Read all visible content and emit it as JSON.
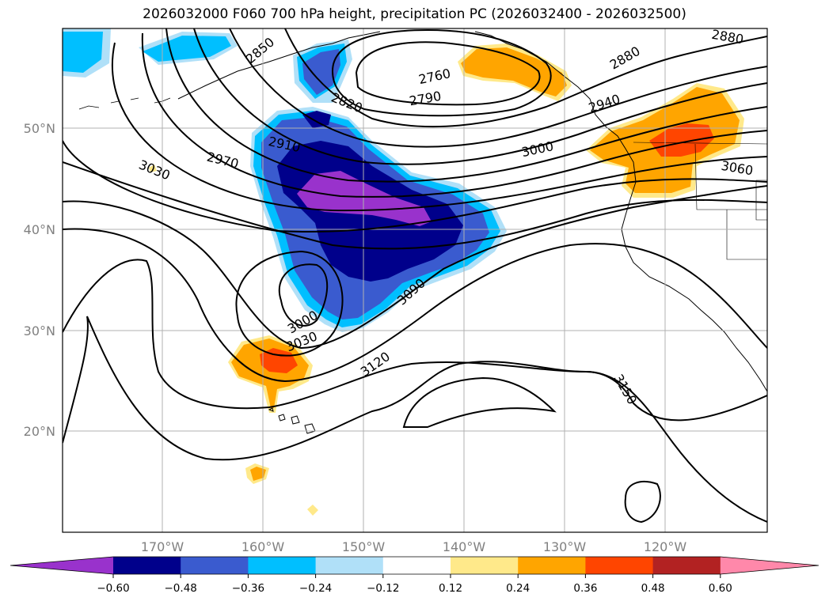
{
  "title": "2026032000 F060 700 hPa height, precipitation PC (2026032400 - 2026032500)",
  "lat_labels": [
    "50°N",
    "40°N",
    "30°N",
    "20°N"
  ],
  "lon_labels": [
    "170°W",
    "160°W",
    "150°W",
    "140°W",
    "130°W",
    "120°W"
  ],
  "contour_labels": [
    "2850",
    "2760",
    "2790",
    "2820",
    "2880",
    "2880",
    "2940",
    "2910",
    "2970",
    "3000",
    "3030",
    "3060",
    "3000",
    "3030",
    "3090",
    "3120",
    "3150"
  ],
  "colorbar": {
    "ticks": [
      "−0.60",
      "−0.48",
      "−0.36",
      "−0.24",
      "−0.12",
      "0.12",
      "0.24",
      "0.36",
      "0.48",
      "0.60"
    ],
    "colors": [
      "#9932cc",
      "#00008b",
      "#3a5bcf",
      "#00bfff",
      "#b0e0f8",
      "#ffffff",
      "#ffe98a",
      "#ffa500",
      "#ff4500",
      "#b22222",
      "#ff88aa"
    ]
  },
  "fill_colors": {
    "neg_light": "#b0e0f8",
    "neg_sky": "#00bfff",
    "neg_mid": "#3a5bcf",
    "neg_dark": "#00008b",
    "neg_purple": "#9932cc",
    "pos_light": "#ffe98a",
    "pos_orange": "#ffa500",
    "pos_red": "#ff4500"
  }
}
